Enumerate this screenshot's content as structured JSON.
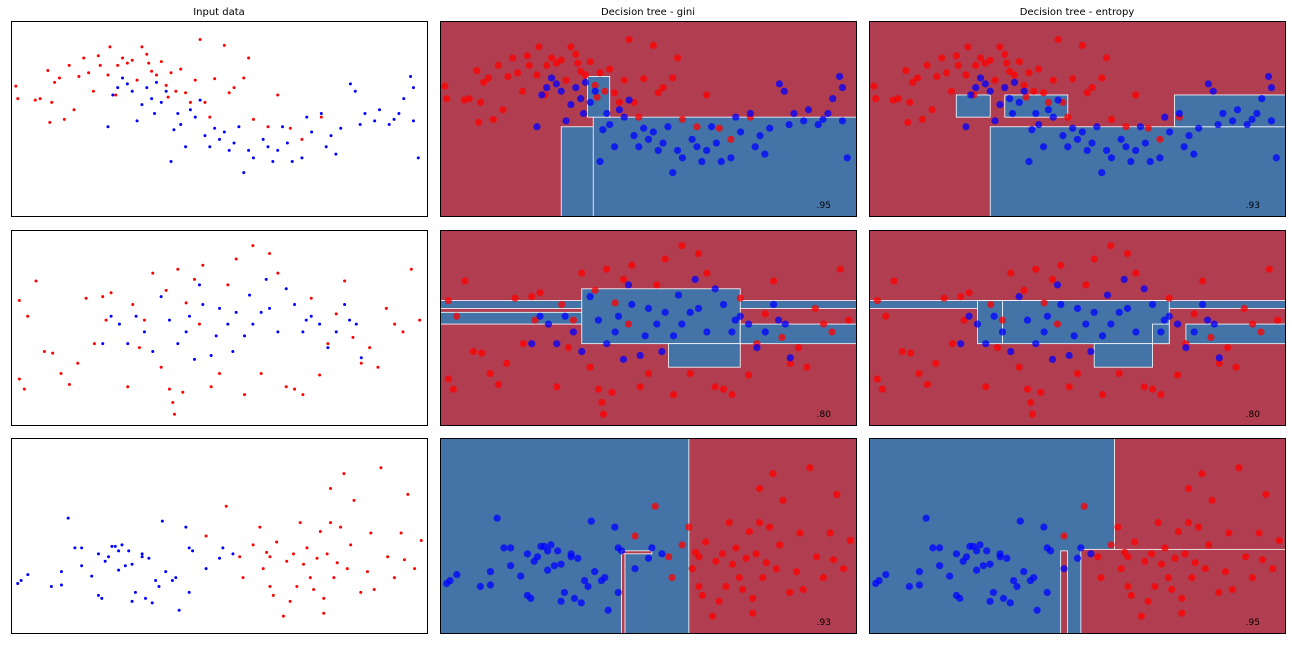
{
  "colors": {
    "class0_point": "#ff0000",
    "class1_point": "#0000ff",
    "class0_region": "#b03e50",
    "class1_region": "#4474a7",
    "boundary": "#ffffff"
  },
  "columns": [
    "Input data",
    "Decision tree - gini",
    "Decision tree - entropy"
  ],
  "chart_data": [
    {
      "dataset": "moons",
      "type": "scatter",
      "xlim": [
        -1.7,
        2.6
      ],
      "ylim": [
        -1.1,
        1.55
      ],
      "class0": [
        [
          -1.65,
          0.67
        ],
        [
          -1.63,
          0.5
        ],
        [
          -1.45,
          0.48
        ],
        [
          -1.4,
          0.5
        ],
        [
          -1.32,
          0.88
        ],
        [
          -1.3,
          0.18
        ],
        [
          -1.28,
          0.45
        ],
        [
          -1.25,
          0.72
        ],
        [
          -1.2,
          0.78
        ],
        [
          -1.15,
          0.22
        ],
        [
          -1.1,
          0.95
        ],
        [
          -1.05,
          0.35
        ],
        [
          -1.0,
          0.8
        ],
        [
          -0.95,
          1.05
        ],
        [
          -0.9,
          0.85
        ],
        [
          -0.85,
          0.6
        ],
        [
          -0.8,
          1.08
        ],
        [
          -0.78,
          0.95
        ],
        [
          -0.7,
          0.82
        ],
        [
          -0.68,
          1.2
        ],
        [
          -0.62,
          0.55
        ],
        [
          -0.6,
          0.95
        ],
        [
          -0.55,
          1.05
        ],
        [
          -0.5,
          0.98
        ],
        [
          -0.45,
          1.02
        ],
        [
          -0.4,
          0.75
        ],
        [
          -0.35,
          1.2
        ],
        [
          -0.3,
          1.1
        ],
        [
          -0.28,
          0.98
        ],
        [
          -0.25,
          0.87
        ],
        [
          -0.2,
          0.82
        ],
        [
          -0.15,
          1.0
        ],
        [
          -0.1,
          0.68
        ],
        [
          -0.08,
          0.52
        ],
        [
          -0.05,
          0.85
        ],
        [
          0.0,
          0.6
        ],
        [
          0.05,
          0.9
        ],
        [
          0.1,
          0.58
        ],
        [
          0.15,
          0.45
        ],
        [
          0.2,
          0.75
        ],
        [
          0.25,
          1.3
        ],
        [
          0.3,
          0.45
        ],
        [
          0.35,
          0.25
        ],
        [
          0.4,
          0.77
        ],
        [
          0.5,
          1.22
        ],
        [
          0.55,
          0.58
        ],
        [
          0.6,
          0.65
        ],
        [
          0.7,
          0.78
        ],
        [
          0.75,
          1.05
        ],
        [
          0.8,
          0.22
        ],
        [
          0.95,
          0.12
        ],
        [
          1.05,
          0.55
        ],
        [
          1.18,
          0.1
        ],
        [
          1.3,
          -0.05
        ],
        [
          1.5,
          0.25
        ]
      ],
      "class1": [
        [
          -0.7,
          0.12
        ],
        [
          -0.65,
          0.55
        ],
        [
          -0.6,
          0.65
        ],
        [
          -0.55,
          0.78
        ],
        [
          -0.5,
          0.7
        ],
        [
          -0.45,
          0.6
        ],
        [
          -0.4,
          0.2
        ],
        [
          -0.35,
          0.42
        ],
        [
          -0.3,
          0.65
        ],
        [
          -0.25,
          0.5
        ],
        [
          -0.22,
          0.3
        ],
        [
          -0.2,
          0.72
        ],
        [
          -0.15,
          0.45
        ],
        [
          -0.1,
          0.6
        ],
        [
          -0.05,
          -0.35
        ],
        [
          -0.02,
          0.08
        ],
        [
          0.02,
          0.3
        ],
        [
          0.05,
          0.15
        ],
        [
          0.1,
          -0.15
        ],
        [
          0.15,
          0.35
        ],
        [
          0.2,
          0.25
        ],
        [
          0.25,
          0.48
        ],
        [
          0.3,
          0.0
        ],
        [
          0.35,
          -0.15
        ],
        [
          0.4,
          0.1
        ],
        [
          0.45,
          -0.05
        ],
        [
          0.5,
          0.05
        ],
        [
          0.55,
          -0.2
        ],
        [
          0.6,
          -0.1
        ],
        [
          0.65,
          0.12
        ],
        [
          0.7,
          -0.5
        ],
        [
          0.75,
          -0.2
        ],
        [
          0.8,
          -0.3
        ],
        [
          0.9,
          -0.05
        ],
        [
          0.95,
          -0.15
        ],
        [
          1.0,
          -0.35
        ],
        [
          1.05,
          -0.2
        ],
        [
          1.1,
          0.12
        ],
        [
          1.15,
          -0.1
        ],
        [
          1.2,
          -0.35
        ],
        [
          1.3,
          -0.3
        ],
        [
          1.35,
          0.25
        ],
        [
          1.4,
          0.05
        ],
        [
          1.5,
          0.3
        ],
        [
          1.55,
          -0.15
        ],
        [
          1.6,
          0.0
        ],
        [
          1.65,
          -0.25
        ],
        [
          1.7,
          0.1
        ],
        [
          1.8,
          0.7
        ],
        [
          1.85,
          0.6
        ],
        [
          1.9,
          0.15
        ],
        [
          1.95,
          0.3
        ],
        [
          2.05,
          0.2
        ],
        [
          2.1,
          0.35
        ],
        [
          2.2,
          0.15
        ],
        [
          2.25,
          0.22
        ],
        [
          2.3,
          0.3
        ],
        [
          2.35,
          0.5
        ],
        [
          2.42,
          0.8
        ],
        [
          2.45,
          0.2
        ],
        [
          2.45,
          0.65
        ],
        [
          2.5,
          -0.3
        ]
      ]
    },
    {
      "dataset": "circles",
      "type": "scatter",
      "xlim": [
        -1.25,
        1.25
      ],
      "ylim": [
        -1.25,
        1.25
      ],
      "class0": [
        [
          -1.2,
          0.35
        ],
        [
          -1.2,
          -0.65
        ],
        [
          -1.17,
          -0.78
        ],
        [
          -1.15,
          0.15
        ],
        [
          -1.1,
          0.6
        ],
        [
          -1.05,
          -0.3
        ],
        [
          -1.0,
          -0.32
        ],
        [
          -0.95,
          -0.58
        ],
        [
          -0.9,
          -0.72
        ],
        [
          -0.85,
          -0.45
        ],
        [
          -0.8,
          0.38
        ],
        [
          -0.75,
          -0.2
        ],
        [
          -0.7,
          0.4
        ],
        [
          -0.68,
          0.1
        ],
        [
          -0.65,
          0.45
        ],
        [
          -0.55,
          -0.75
        ],
        [
          -0.52,
          0.3
        ],
        [
          -0.48,
          -0.25
        ],
        [
          -0.45,
          0.1
        ],
        [
          -0.4,
          0.7
        ],
        [
          -0.35,
          -0.5
        ],
        [
          -0.32,
          0.48
        ],
        [
          -0.3,
          -0.78
        ],
        [
          -0.28,
          -0.95
        ],
        [
          -0.27,
          -1.1
        ],
        [
          -0.25,
          0.75
        ],
        [
          -0.22,
          -0.82
        ],
        [
          -0.2,
          0.32
        ],
        [
          -0.15,
          0.62
        ],
        [
          -0.12,
          0.05
        ],
        [
          -0.1,
          0.8
        ],
        [
          -0.05,
          -0.75
        ],
        [
          0.0,
          -0.58
        ],
        [
          0.05,
          0.55
        ],
        [
          0.1,
          0.88
        ],
        [
          0.15,
          -0.85
        ],
        [
          0.2,
          1.05
        ],
        [
          0.25,
          -0.58
        ],
        [
          0.3,
          0.95
        ],
        [
          0.35,
          0.7
        ],
        [
          0.4,
          -0.75
        ],
        [
          0.45,
          -0.78
        ],
        [
          0.5,
          -0.85
        ],
        [
          0.55,
          0.38
        ],
        [
          0.6,
          -0.6
        ],
        [
          0.65,
          -0.2
        ],
        [
          0.7,
          0.18
        ],
        [
          0.75,
          0.6
        ],
        [
          0.8,
          -0.12
        ],
        [
          0.85,
          -0.45
        ],
        [
          0.9,
          -0.25
        ],
        [
          0.95,
          -0.5
        ],
        [
          1.0,
          0.25
        ],
        [
          1.05,
          0.05
        ],
        [
          1.1,
          -0.05
        ],
        [
          1.15,
          0.75
        ],
        [
          1.2,
          0.1
        ]
      ],
      "class1": [
        [
          -0.7,
          -0.2
        ],
        [
          -0.65,
          0.15
        ],
        [
          -0.6,
          0.05
        ],
        [
          -0.55,
          -0.2
        ],
        [
          -0.5,
          0.15
        ],
        [
          -0.45,
          -0.05
        ],
        [
          -0.4,
          -0.3
        ],
        [
          -0.35,
          0.4
        ],
        [
          -0.3,
          0.1
        ],
        [
          -0.25,
          -0.2
        ],
        [
          -0.2,
          -0.05
        ],
        [
          -0.18,
          0.15
        ],
        [
          -0.15,
          -0.4
        ],
        [
          -0.12,
          0.55
        ],
        [
          -0.1,
          0.3
        ],
        [
          -0.05,
          -0.35
        ],
        [
          -0.02,
          -0.1
        ],
        [
          0.0,
          0.25
        ],
        [
          0.05,
          0.05
        ],
        [
          0.08,
          -0.3
        ],
        [
          0.1,
          0.2
        ],
        [
          0.15,
          -0.1
        ],
        [
          0.18,
          0.42
        ],
        [
          0.2,
          0.05
        ],
        [
          0.25,
          0.2
        ],
        [
          0.28,
          0.62
        ],
        [
          0.3,
          0.25
        ],
        [
          0.35,
          -0.05
        ],
        [
          0.4,
          0.5
        ],
        [
          0.45,
          0.3
        ],
        [
          0.5,
          -0.05
        ],
        [
          0.52,
          0.1
        ],
        [
          0.55,
          0.15
        ],
        [
          0.6,
          0.05
        ],
        [
          0.65,
          -0.25
        ],
        [
          0.7,
          -0.05
        ],
        [
          0.75,
          0.3
        ],
        [
          0.78,
          0.1
        ],
        [
          0.82,
          0.05
        ],
        [
          0.85,
          -0.38
        ]
      ]
    },
    {
      "dataset": "linear",
      "type": "scatter",
      "xlim": [
        -2.6,
        3.6
      ],
      "ylim": [
        -2.4,
        4.2
      ],
      "class0": [
        [
          0.6,
          1.9
        ],
        [
          0.8,
          0.2
        ],
        [
          0.85,
          -0.5
        ],
        [
          1.0,
          0.6
        ],
        [
          1.1,
          1.2
        ],
        [
          1.15,
          -0.2
        ],
        [
          1.2,
          0.35
        ],
        [
          1.25,
          -0.8
        ],
        [
          1.3,
          -1.1
        ],
        [
          1.35,
          0.7
        ],
        [
          1.45,
          -1.8
        ],
        [
          1.5,
          0.05
        ],
        [
          1.55,
          -1.3
        ],
        [
          1.6,
          0.3
        ],
        [
          1.65,
          -0.8
        ],
        [
          1.7,
          1.35
        ],
        [
          1.75,
          -0.05
        ],
        [
          1.8,
          0.5
        ],
        [
          1.85,
          -0.5
        ],
        [
          1.9,
          -0.9
        ],
        [
          1.95,
          0.15
        ],
        [
          2.0,
          1.05
        ],
        [
          2.05,
          -1.2
        ],
        [
          2.1,
          0.3
        ],
        [
          2.15,
          2.5
        ],
        [
          2.15,
          1.35
        ],
        [
          2.2,
          -0.5
        ],
        [
          2.25,
          0.0
        ],
        [
          2.3,
          1.2
        ],
        [
          2.35,
          3.0
        ],
        [
          2.4,
          -0.2
        ],
        [
          2.45,
          0.6
        ],
        [
          2.5,
          2.1
        ],
        [
          2.6,
          -1.0
        ],
        [
          2.7,
          -0.3
        ],
        [
          2.75,
          1.0
        ],
        [
          2.8,
          -0.9
        ],
        [
          2.9,
          3.2
        ],
        [
          3.0,
          0.2
        ],
        [
          3.1,
          -0.5
        ],
        [
          3.2,
          1.0
        ],
        [
          3.25,
          0.1
        ],
        [
          3.3,
          2.3
        ],
        [
          3.4,
          -0.2
        ],
        [
          3.5,
          0.75
        ],
        [
          0.3,
          0.9
        ],
        [
          2.05,
          -1.7
        ],
        [
          1.25,
          0.2
        ]
      ],
      "class1": [
        [
          -2.5,
          -0.7
        ],
        [
          -2.45,
          -0.6
        ],
        [
          -2.35,
          -0.4
        ],
        [
          -2.0,
          -0.8
        ],
        [
          -1.85,
          -0.3
        ],
        [
          -1.75,
          1.5
        ],
        [
          -1.65,
          0.5
        ],
        [
          -1.55,
          0.5
        ],
        [
          -1.55,
          -0.1
        ],
        [
          -1.4,
          -0.45
        ],
        [
          -1.3,
          -1.1
        ],
        [
          -1.3,
          0.3
        ],
        [
          -1.25,
          -1.2
        ],
        [
          -1.2,
          0.05
        ],
        [
          -1.15,
          0.2
        ],
        [
          -1.1,
          0.55
        ],
        [
          -1.05,
          0.55
        ],
        [
          -1.0,
          0.4
        ],
        [
          -1.0,
          -0.25
        ],
        [
          -0.95,
          0.6
        ],
        [
          -0.9,
          -0.1
        ],
        [
          -0.85,
          0.4
        ],
        [
          -0.8,
          -0.05
        ],
        [
          -0.8,
          -1.3
        ],
        [
          -0.75,
          -1.0
        ],
        [
          -0.65,
          0.2
        ],
        [
          -0.6,
          -1.2
        ],
        [
          -0.55,
          0.15
        ],
        [
          -0.5,
          -1.35
        ],
        [
          -0.45,
          -0.6
        ],
        [
          -0.4,
          -0.8
        ],
        [
          -0.3,
          -0.3
        ],
        [
          -0.2,
          -0.6
        ],
        [
          -0.15,
          -0.5
        ],
        [
          -0.1,
          -1.6
        ],
        [
          0.0,
          1.2
        ],
        [
          0.05,
          0.5
        ],
        [
          0.1,
          0.4
        ],
        [
          0.3,
          -0.2
        ],
        [
          0.5,
          0.15
        ],
        [
          0.55,
          0.5
        ],
        [
          0.7,
          0.3
        ],
        [
          -0.65,
          0.3
        ],
        [
          -0.35,
          1.4
        ],
        [
          0.05,
          -1.0
        ],
        [
          -1.85,
          -0.75
        ]
      ]
    }
  ],
  "tree_regions": [
    {
      "gini_class1_rects": [
        [
          -0.45,
          -1.1,
          2.6,
          0.12
        ],
        [
          -0.12,
          -1.1,
          2.6,
          0.25
        ],
        [
          -0.18,
          0.25,
          0.05,
          0.8
        ],
        [
          0.05,
          0.27,
          0.1,
          0.25
        ]
      ],
      "entropy_class1_rects": [
        [
          -0.45,
          -1.1,
          2.6,
          0.12
        ],
        [
          -0.8,
          0.25,
          2.6,
          0.12
        ],
        [
          -0.8,
          0.25,
          -0.45,
          0.55
        ],
        [
          -0.3,
          0.25,
          0.35,
          0.55
        ],
        [
          1.45,
          0.12,
          2.6,
          0.55
        ]
      ],
      "gini_score": ".95",
      "entropy_score": ".93"
    },
    {
      "gini_class1_rects": [
        [
          -1.25,
          0.25,
          1.25,
          0.35
        ],
        [
          -1.25,
          0.05,
          -0.35,
          0.2
        ],
        [
          -0.4,
          -0.2,
          0.55,
          0.5
        ],
        [
          0.12,
          -0.5,
          0.55,
          -0.2
        ],
        [
          0.55,
          -0.2,
          0.65,
          0.0
        ],
        [
          0.55,
          -0.2,
          1.25,
          0.05
        ]
      ],
      "entropy_class1_rects": [
        [
          -1.25,
          0.25,
          1.25,
          0.35
        ],
        [
          -0.6,
          -0.2,
          -0.45,
          0.35
        ],
        [
          -0.45,
          -0.2,
          0.55,
          0.35
        ],
        [
          0.1,
          -0.5,
          0.45,
          -0.2
        ],
        [
          0.45,
          -0.2,
          0.55,
          0.05
        ],
        [
          0.65,
          -0.2,
          1.25,
          0.05
        ]
      ],
      "gini_score": ".80",
      "entropy_score": ".80"
    },
    {
      "gini_class0_rects": [
        [
          1.1,
          -2.4,
          3.6,
          4.2
        ],
        [
          0.1,
          0.3,
          0.55,
          0.4
        ],
        [
          0.1,
          -2.4,
          0.15,
          0.3
        ]
      ],
      "entropy_class0_rects": [
        [
          1.05,
          -2.4,
          3.6,
          4.2
        ],
        [
          0.25,
          -2.4,
          0.35,
          0.4
        ],
        [
          0.55,
          -2.4,
          3.6,
          0.45
        ]
      ],
      "gini_score": ".93",
      "entropy_score": ".95"
    }
  ]
}
